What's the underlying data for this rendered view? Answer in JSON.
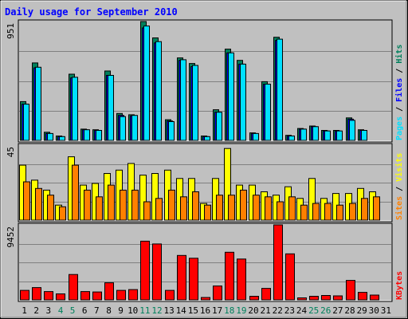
{
  "chart_data": {
    "type": "bar",
    "title": "Daily usage for September 2010",
    "categories": [
      "1",
      "2",
      "3",
      "4",
      "5",
      "6",
      "7",
      "8",
      "9",
      "10",
      "11",
      "12",
      "13",
      "14",
      "15",
      "16",
      "17",
      "18",
      "19",
      "20",
      "21",
      "22",
      "23",
      "24",
      "25",
      "26",
      "27",
      "28",
      "29",
      "30",
      "31"
    ],
    "weekend_days": [
      "4",
      "5",
      "11",
      "12",
      "18",
      "19",
      "25",
      "26"
    ],
    "panels": [
      {
        "name": "hits-files-pages",
        "ymax": 951,
        "ylabel_max": "951",
        "series": [
          {
            "name": "Hits",
            "color": "#00805c",
            "values": [
              310,
              620,
              65,
              35,
              530,
              90,
              85,
              555,
              215,
              205,
              951,
              820,
              165,
              660,
              615,
              35,
              245,
              730,
              640,
              60,
              470,
              825,
              40,
              95,
              115,
              80,
              80,
              180,
              85,
              0,
              0
            ]
          },
          {
            "name": "Files",
            "color": "#0000ff",
            "values": [
              290,
              580,
              55,
              30,
              500,
              85,
              80,
              520,
              200,
              195,
              900,
              780,
              155,
              640,
              590,
              30,
              225,
              700,
              610,
              55,
              450,
              800,
              35,
              90,
              110,
              75,
              75,
              170,
              80,
              0,
              0
            ]
          },
          {
            "name": "Pages",
            "color": "#00e0ff",
            "values": [
              290,
              585,
              55,
              30,
              505,
              85,
              80,
              520,
              190,
              200,
              915,
              790,
              150,
              645,
              600,
              30,
              225,
              700,
              610,
              55,
              450,
              810,
              35,
              90,
              110,
              75,
              75,
              160,
              80,
              0,
              0
            ]
          }
        ]
      },
      {
        "name": "visits-sites",
        "ymax": 45,
        "ylabel_max": "45",
        "series": [
          {
            "name": "Visits",
            "color": "#ffff00",
            "values": [
              33,
              24,
              18,
              9,
              38,
              21,
              22,
              28,
              30,
              34,
              27,
              28,
              30,
              25,
              25,
              10,
              25,
              43,
              21,
              21,
              17,
              15,
              20,
              13,
              25,
              13,
              16,
              16,
              19,
              17,
              0
            ]
          },
          {
            "name": "Sites",
            "color": "#ff8000",
            "values": [
              23,
              19,
              15,
              8,
              33,
              18,
              14,
              21,
              18,
              18,
              11,
              13,
              18,
              14,
              17,
              9,
              15,
              15,
              18,
              15,
              14,
              11,
              14,
              9,
              10,
              10,
              9,
              10,
              13,
              14,
              0
            ]
          }
        ]
      },
      {
        "name": "kbytes",
        "ymax": 9452,
        "ylabel_max": "9452",
        "series": [
          {
            "name": "KBytes",
            "color": "#ff0000",
            "values": [
              1200,
              1550,
              1050,
              750,
              3200,
              1050,
              1000,
              2150,
              1200,
              1300,
              7400,
              7050,
              1200,
              5600,
              5250,
              300,
              1750,
              6000,
              5150,
              450,
              1450,
              9452,
              5800,
              250,
              450,
              550,
              500,
              2450,
              950,
              600,
              0
            ]
          }
        ]
      }
    ],
    "legend_right": {
      "top": {
        "items": [
          "Pages",
          "Files",
          "Hits"
        ],
        "separator": " / ",
        "colors": [
          "#00e0ff",
          "#0000ff",
          "#00805c"
        ]
      },
      "middle": {
        "items": [
          "Sites",
          "Visits"
        ],
        "separator": " / ",
        "colors": [
          "#ff8000",
          "#ffff00"
        ]
      },
      "bottom": {
        "items": [
          "KBytes"
        ],
        "separator": "",
        "colors": [
          "#ff0000"
        ]
      }
    },
    "colors": {
      "title": "#0000ff",
      "background": "#c0c0c0",
      "panel": "#c0c0c0",
      "weekday_label": "#000000",
      "weekend_label": "#00805c"
    }
  }
}
